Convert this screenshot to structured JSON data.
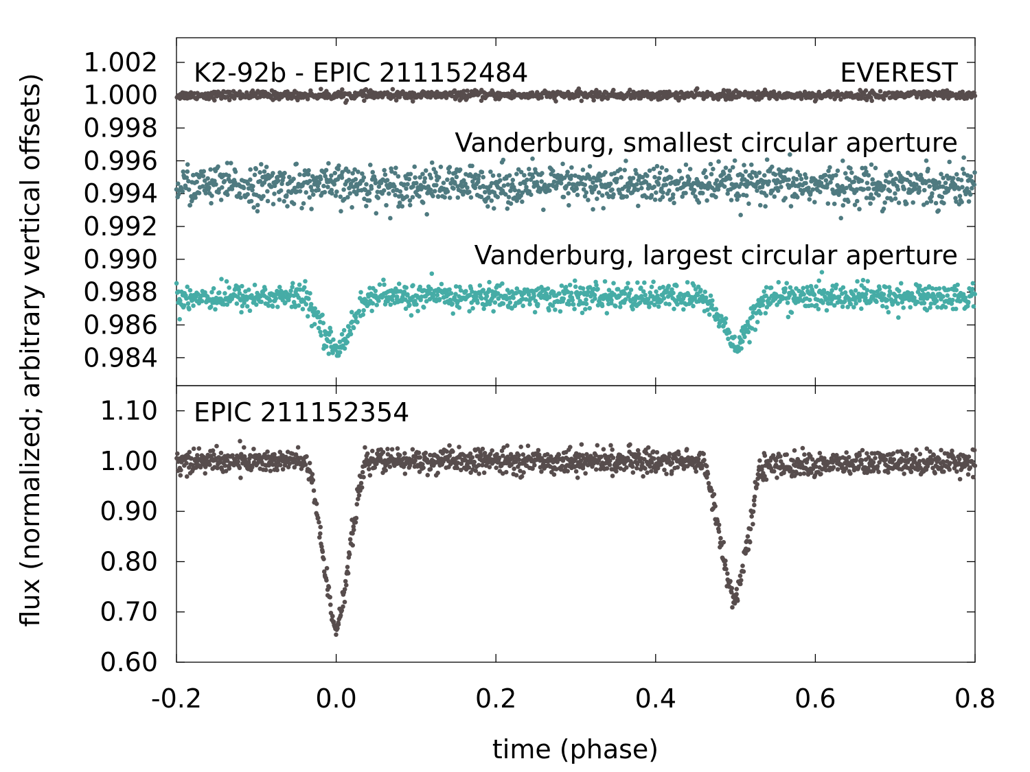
{
  "chart_data": [
    {
      "type": "scatter",
      "panel": "top",
      "title": "",
      "xlabel": "",
      "ylabel": "flux (normalized; arbitrary vertical offsets)",
      "xlim": [
        -0.2,
        0.8
      ],
      "ylim": [
        0.9823,
        1.0035
      ],
      "yticks": [
        1.002,
        1.0,
        0.998,
        0.996,
        0.994,
        0.992,
        0.99,
        0.988,
        0.986,
        0.984
      ],
      "ytick_labels": [
        "1.002",
        "1.000",
        "0.998",
        "0.996",
        "0.994",
        "0.992",
        "0.990",
        "0.988",
        "0.986",
        "0.984"
      ],
      "grid": false,
      "annotations": {
        "target": "K2-92b - EPIC 211152484",
        "everest": "EVEREST",
        "small_ap": "Vanderburg, smallest circular aperture",
        "large_ap": "Vanderburg, largest circular aperture"
      },
      "series": [
        {
          "name": "EVEREST",
          "color": "#574d4d",
          "baseline": 1.0,
          "x": [
            -0.2,
            -0.1,
            0.0,
            0.1,
            0.2,
            0.3,
            0.4,
            0.5,
            0.6,
            0.7,
            0.8
          ],
          "y": [
            1.0,
            1.0,
            1.0,
            1.0,
            1.0,
            1.0,
            1.0,
            1.0,
            1.0,
            1.0,
            1.0
          ],
          "scatter": 0.00013
        },
        {
          "name": "Vanderburg, smallest circular aperture",
          "color": "#4f7a80",
          "baseline": 0.9945,
          "x": [
            -0.2,
            -0.1,
            0.0,
            0.1,
            0.2,
            0.3,
            0.4,
            0.5,
            0.6,
            0.7,
            0.8
          ],
          "y": [
            0.9945,
            0.9945,
            0.9945,
            0.9945,
            0.9945,
            0.9945,
            0.9945,
            0.9945,
            0.9945,
            0.9945,
            0.9945
          ],
          "scatter": 0.0006
        },
        {
          "name": "Vanderburg, largest circular aperture",
          "color": "#46aca6",
          "baseline": 0.9877,
          "x": [
            -0.2,
            -0.04,
            -0.02,
            0.0,
            0.02,
            0.04,
            0.2,
            0.46,
            0.48,
            0.5,
            0.52,
            0.54,
            0.8
          ],
          "y": [
            0.9877,
            0.9877,
            0.9862,
            0.9842,
            0.9862,
            0.9877,
            0.9877,
            0.9877,
            0.9864,
            0.9846,
            0.9864,
            0.9877,
            0.9877
          ],
          "scatter": 0.0004
        }
      ]
    },
    {
      "type": "scatter",
      "panel": "bottom",
      "title": "",
      "xlabel": "time (phase)",
      "ylabel": "flux (normalized; arbitrary vertical offsets)",
      "xlim": [
        -0.2,
        0.8
      ],
      "ylim": [
        0.6,
        1.15
      ],
      "xticks": [
        -0.2,
        0.0,
        0.2,
        0.4,
        0.6,
        0.8
      ],
      "xtick_labels": [
        "-0.2",
        "0.0",
        "0.2",
        "0.4",
        "0.6",
        "0.8"
      ],
      "yticks": [
        1.1,
        1.0,
        0.9,
        0.8,
        0.7,
        0.6
      ],
      "ytick_labels": [
        "1.10",
        "1.00",
        "0.90",
        "0.80",
        "0.70",
        "0.60"
      ],
      "grid": false,
      "annotations": {
        "target": "EPIC 211152354"
      },
      "series": [
        {
          "color": "#574d4d",
          "x": [
            -0.2,
            -0.04,
            -0.03,
            -0.02,
            -0.01,
            0.0,
            0.01,
            0.02,
            0.035,
            0.2,
            0.46,
            0.47,
            0.48,
            0.49,
            0.5,
            0.51,
            0.52,
            0.53,
            0.8
          ],
          "y": [
            1.0,
            1.0,
            0.96,
            0.85,
            0.74,
            0.66,
            0.74,
            0.85,
            1.0,
            1.0,
            1.0,
            0.94,
            0.85,
            0.77,
            0.72,
            0.79,
            0.88,
            0.99,
            1.0
          ],
          "scatter": 0.012
        }
      ]
    }
  ]
}
